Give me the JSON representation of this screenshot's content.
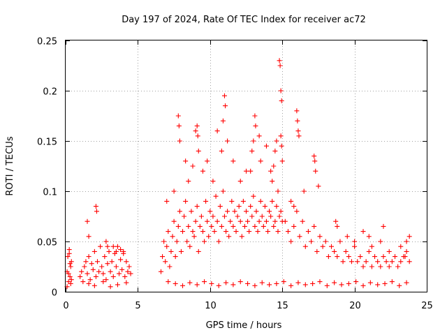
{
  "chart_data": {
    "type": "scatter",
    "title": "Day 197 of 2024, Rate Of TEC Index for receiver ac72",
    "xlabel": "GPS time / hours",
    "ylabel": "ROTI / TECUs",
    "xlim": [
      0,
      25
    ],
    "ylim": [
      0,
      0.25
    ],
    "xticks": [
      0,
      5,
      10,
      15,
      20,
      25
    ],
    "yticks": [
      0,
      0.05,
      0.1,
      0.15,
      0.2,
      0.25
    ],
    "xtick_labels": [
      "0",
      "5",
      "10",
      "15",
      "20",
      "25"
    ],
    "ytick_labels": [
      "0",
      "0.05",
      "0.1",
      "0.15",
      "0.2",
      "0.25"
    ],
    "grid": true,
    "marker": "+",
    "color": "#ff0000",
    "series": [
      {
        "x": [
          0.1,
          0.15,
          0.2,
          0.25,
          0.3,
          0.35,
          0.4,
          0.1,
          0.2,
          0.3,
          0.4,
          0.25,
          0.35,
          1.0,
          1.1,
          1.2,
          1.3,
          1.4,
          1.5,
          1.6,
          1.7,
          1.8,
          1.9,
          2.0,
          2.1,
          2.2,
          2.3,
          2.4,
          2.5,
          2.6,
          2.7,
          2.8,
          2.9,
          3.0,
          3.1,
          3.2,
          3.3,
          3.4,
          3.5,
          3.6,
          3.7,
          3.8,
          3.9,
          4.0,
          4.1,
          4.2,
          4.3,
          4.4,
          4.5,
          1.5,
          1.6,
          2.1,
          2.15,
          2.8,
          2.9,
          3.3,
          3.5,
          3.8,
          4.0,
          6.6,
          6.7,
          6.8,
          6.9,
          7.0,
          7.1,
          7.2,
          7.3,
          7.4,
          7.5,
          7.6,
          7.7,
          7.8,
          7.9,
          8.0,
          8.1,
          8.2,
          8.3,
          8.4,
          8.5,
          8.6,
          8.7,
          8.8,
          8.9,
          9.0,
          9.1,
          9.2,
          9.3,
          9.4,
          9.5,
          9.6,
          9.7,
          9.8,
          9.9,
          10.0,
          10.1,
          10.2,
          10.3,
          10.4,
          10.5,
          10.6,
          10.7,
          10.8,
          10.9,
          11.0,
          11.1,
          11.2,
          11.3,
          11.4,
          11.5,
          11.6,
          11.7,
          11.8,
          11.9,
          12.0,
          12.1,
          12.2,
          12.3,
          12.4,
          12.5,
          12.6,
          12.7,
          12.8,
          12.9,
          13.0,
          13.1,
          13.2,
          13.3,
          13.4,
          13.5,
          13.6,
          13.7,
          13.8,
          13.9,
          14.0,
          14.1,
          14.2,
          14.3,
          14.4,
          14.5,
          14.6,
          14.7,
          14.8,
          14.9,
          15.0,
          7.0,
          7.5,
          7.8,
          7.85,
          8.3,
          8.5,
          8.8,
          9.1,
          9.15,
          9.2,
          9.5,
          9.8,
          10.2,
          10.5,
          10.9,
          11.0,
          11.05,
          11.2,
          11.6,
          12.1,
          12.5,
          12.9,
          13.1,
          13.15,
          13.4,
          13.5,
          13.9,
          14.2,
          14.3,
          14.5,
          14.8,
          14.85,
          14.9,
          14.95,
          15.0,
          14.9,
          14.95,
          7.9,
          9.0,
          10.8,
          12.8,
          13.0,
          14.4,
          14.6,
          14.7,
          15.2,
          15.4,
          15.6,
          15.8,
          16.0,
          16.2,
          16.4,
          16.6,
          16.8,
          17.0,
          17.2,
          17.4,
          17.6,
          17.8,
          18.0,
          18.2,
          18.4,
          18.6,
          18.8,
          19.0,
          19.2,
          19.4,
          19.6,
          19.8,
          20.0,
          20.2,
          20.4,
          20.6,
          20.8,
          21.0,
          21.2,
          21.4,
          21.6,
          21.8,
          22.0,
          22.2,
          22.4,
          22.6,
          22.8,
          23.0,
          23.2,
          23.4,
          23.6,
          23.8,
          16.0,
          16.05,
          16.1,
          16.15,
          15.6,
          15.8,
          17.2,
          17.25,
          17.3,
          17.5,
          16.5,
          18.7,
          18.8,
          19.5,
          20.0,
          20.6,
          21.0,
          21.2,
          21.8,
          22.0,
          22.4,
          23.2,
          23.5,
          23.6,
          23.8,
          1.6,
          2.0,
          2.6,
          3.1,
          3.6,
          4.2,
          7.1,
          7.6,
          8.1,
          8.6,
          9.1,
          9.6,
          10.1,
          10.6,
          11.1,
          11.6,
          12.1,
          12.6,
          13.1,
          13.6,
          14.1,
          14.6,
          15.1,
          15.6,
          16.1,
          16.6,
          17.1,
          17.6,
          18.1,
          18.6,
          19.1,
          19.6,
          20.1,
          20.6,
          21.1,
          21.6,
          22.1,
          22.6,
          23.1,
          23.6
        ],
        "y": [
          0.02,
          0.035,
          0.01,
          0.042,
          0.015,
          0.025,
          0.03,
          0.005,
          0.018,
          0.028,
          0.012,
          0.038,
          0.008,
          0.015,
          0.02,
          0.01,
          0.025,
          0.03,
          0.018,
          0.035,
          0.012,
          0.028,
          0.022,
          0.04,
          0.015,
          0.03,
          0.02,
          0.045,
          0.025,
          0.018,
          0.035,
          0.012,
          0.028,
          0.04,
          0.02,
          0.03,
          0.015,
          0.038,
          0.025,
          0.045,
          0.018,
          0.032,
          0.022,
          0.04,
          0.015,
          0.03,
          0.02,
          0.025,
          0.018,
          0.07,
          0.055,
          0.085,
          0.08,
          0.05,
          0.045,
          0.045,
          0.04,
          0.042,
          0.038,
          0.02,
          0.035,
          0.05,
          0.03,
          0.045,
          0.06,
          0.025,
          0.04,
          0.055,
          0.07,
          0.035,
          0.05,
          0.065,
          0.08,
          0.04,
          0.06,
          0.075,
          0.09,
          0.05,
          0.065,
          0.045,
          0.08,
          0.06,
          0.055,
          0.07,
          0.085,
          0.04,
          0.065,
          0.075,
          0.06,
          0.05,
          0.09,
          0.07,
          0.055,
          0.08,
          0.065,
          0.075,
          0.06,
          0.095,
          0.07,
          0.05,
          0.085,
          0.065,
          0.1,
          0.075,
          0.06,
          0.08,
          0.055,
          0.07,
          0.09,
          0.065,
          0.08,
          0.06,
          0.075,
          0.085,
          0.07,
          0.055,
          0.09,
          0.065,
          0.08,
          0.07,
          0.06,
          0.085,
          0.075,
          0.095,
          0.065,
          0.08,
          0.06,
          0.07,
          0.09,
          0.075,
          0.065,
          0.085,
          0.07,
          0.06,
          0.08,
          0.075,
          0.09,
          0.065,
          0.07,
          0.085,
          0.06,
          0.075,
          0.08,
          0.07,
          0.09,
          0.1,
          0.175,
          0.165,
          0.13,
          0.11,
          0.125,
          0.165,
          0.155,
          0.14,
          0.12,
          0.13,
          0.11,
          0.16,
          0.17,
          0.195,
          0.185,
          0.15,
          0.13,
          0.11,
          0.12,
          0.14,
          0.175,
          0.165,
          0.155,
          0.13,
          0.145,
          0.12,
          0.11,
          0.14,
          0.23,
          0.225,
          0.2,
          0.19,
          0.13,
          0.155,
          0.145,
          0.15,
          0.16,
          0.14,
          0.12,
          0.15,
          0.125,
          0.15,
          0.1,
          0.07,
          0.06,
          0.05,
          0.065,
          0.08,
          0.055,
          0.07,
          0.045,
          0.06,
          0.05,
          0.065,
          0.04,
          0.055,
          0.045,
          0.05,
          0.035,
          0.045,
          0.04,
          0.035,
          0.05,
          0.03,
          0.04,
          0.035,
          0.03,
          0.045,
          0.03,
          0.035,
          0.025,
          0.03,
          0.04,
          0.025,
          0.035,
          0.03,
          0.025,
          0.035,
          0.03,
          0.025,
          0.03,
          0.035,
          0.025,
          0.03,
          0.035,
          0.04,
          0.03,
          0.18,
          0.17,
          0.16,
          0.155,
          0.09,
          0.085,
          0.135,
          0.13,
          0.12,
          0.105,
          0.1,
          0.07,
          0.065,
          0.055,
          0.05,
          0.06,
          0.055,
          0.045,
          0.05,
          0.065,
          0.04,
          0.045,
          0.035,
          0.05,
          0.055,
          0.008,
          0.006,
          0.01,
          0.005,
          0.007,
          0.009,
          0.01,
          0.008,
          0.006,
          0.009,
          0.007,
          0.01,
          0.008,
          0.006,
          0.009,
          0.007,
          0.01,
          0.008,
          0.006,
          0.009,
          0.007,
          0.008,
          0.01,
          0.006,
          0.009,
          0.007,
          0.008,
          0.01,
          0.006,
          0.009,
          0.007,
          0.008,
          0.01,
          0.006,
          0.009,
          0.007,
          0.008,
          0.01,
          0.006,
          0.009
        ]
      }
    ]
  }
}
